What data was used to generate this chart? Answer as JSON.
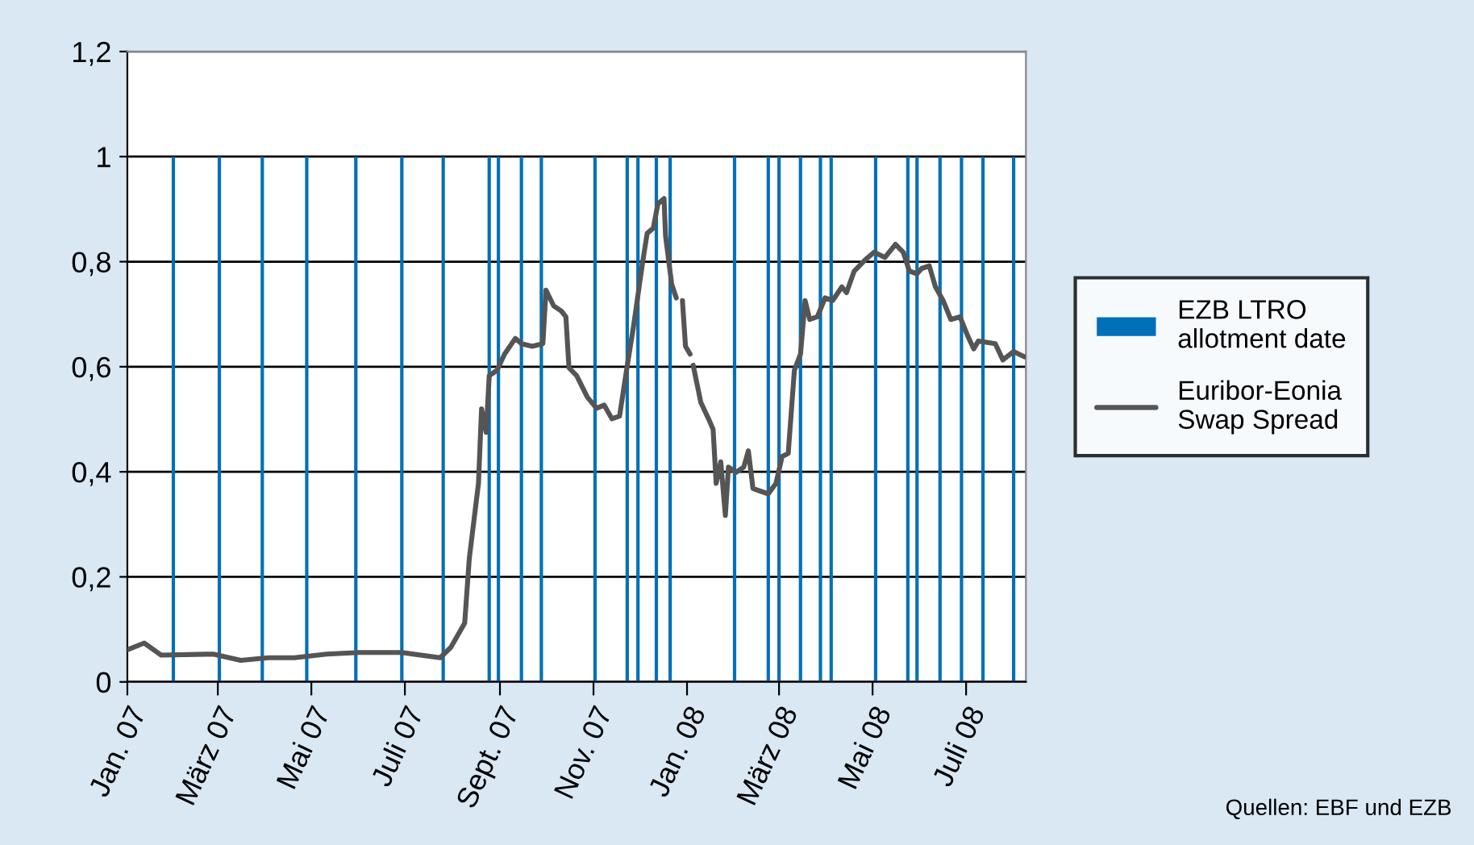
{
  "chart_data": {
    "type": "line",
    "series": [
      {
        "name": "EZB LTRO allotment date",
        "type": "bar",
        "color": "#0070b8",
        "x": [
          "2007-01-31",
          "2007-03-02",
          "2007-03-30",
          "2007-04-28",
          "2007-05-30",
          "2007-06-29",
          "2007-07-26",
          "2007-08-25",
          "2007-08-31",
          "2007-09-15",
          "2007-09-28",
          "2007-11-02",
          "2007-11-23",
          "2007-11-30",
          "2007-12-12",
          "2007-12-21",
          "2008-02-01",
          "2008-02-23",
          "2008-03-01",
          "2008-03-15",
          "2008-03-28",
          "2008-04-04",
          "2008-05-03",
          "2008-05-24",
          "2008-05-30",
          "2008-06-14",
          "2008-06-28",
          "2008-07-12",
          "2008-08-01"
        ],
        "values": [
          1,
          1,
          1,
          1,
          1,
          1,
          1,
          1,
          1,
          1,
          1,
          1,
          1,
          1,
          1,
          1,
          1,
          1,
          1,
          1,
          1,
          1,
          1,
          1,
          1,
          1,
          1,
          1,
          1
        ]
      },
      {
        "name": "Euribor-Eonia Swap Spread",
        "color": "#555555",
        "x": [
          "2007-01-01",
          "2007-01-12",
          "2007-01-23",
          "2007-02-26",
          "2007-03-16",
          "2007-04-03",
          "2007-04-20",
          "2007-05-11",
          "2007-06-01",
          "2007-06-29",
          "2007-07-24",
          "2007-07-31",
          "2007-08-09",
          "2007-08-12",
          "2007-08-18",
          "2007-08-20",
          "2007-08-23",
          "2007-08-25",
          "2007-08-30",
          "2007-09-04",
          "2007-09-11",
          "2007-09-15",
          "2007-09-22",
          "2007-09-29",
          "2007-10-01",
          "2007-10-06",
          "2007-10-11",
          "2007-10-14",
          "2007-10-16",
          "2007-10-21",
          "2007-10-28",
          "2007-11-03",
          "2007-11-08",
          "2007-11-13",
          "2007-11-18",
          "2007-11-22",
          "2007-11-27",
          "2007-12-03",
          "2007-12-06",
          "2007-12-10",
          "2007-12-13",
          "2007-12-17",
          "2007-12-18",
          "2007-12-22",
          "2007-12-25",
          "2007-12-27",
          "2007-12-29",
          "2007-12-31",
          "2008-01-03",
          "2008-01-04",
          "2008-01-05",
          "2008-01-10",
          "2008-01-15",
          "2008-01-18",
          "2008-01-20",
          "2008-01-23",
          "2008-01-26",
          "2008-01-28",
          "2008-02-02",
          "2008-02-07",
          "2008-02-10",
          "2008-02-13",
          "2008-02-18",
          "2008-02-23",
          "2008-02-28",
          "2008-03-03",
          "2008-03-07",
          "2008-03-11",
          "2008-03-15",
          "2008-03-18",
          "2008-03-21",
          "2008-03-26",
          "2008-03-31",
          "2008-04-05",
          "2008-04-11",
          "2008-04-14",
          "2008-04-19",
          "2008-04-26",
          "2008-05-02",
          "2008-05-09",
          "2008-05-16",
          "2008-05-21",
          "2008-05-25",
          "2008-05-30",
          "2008-06-02",
          "2008-06-07",
          "2008-06-11",
          "2008-06-16",
          "2008-06-21",
          "2008-06-27",
          "2008-07-02",
          "2008-07-06",
          "2008-07-09",
          "2008-07-20",
          "2008-07-25",
          "2008-08-01",
          "2008-08-08"
        ],
        "values": [
          0.061,
          0.074,
          0.051,
          0.053,
          0.041,
          0.046,
          0.046,
          0.053,
          0.056,
          0.056,
          0.046,
          0.066,
          0.112,
          0.235,
          0.378,
          0.52,
          0.475,
          0.583,
          0.593,
          0.624,
          0.654,
          0.644,
          0.639,
          0.644,
          0.746,
          0.716,
          0.706,
          0.695,
          0.598,
          0.583,
          0.542,
          0.521,
          0.527,
          0.501,
          0.506,
          0.583,
          0.675,
          0.798,
          0.854,
          0.864,
          0.91,
          0.92,
          0.849,
          0.757,
          0.731,
          null,
          0.726,
          0.639,
          0.624,
          null,
          0.603,
          0.532,
          0.501,
          0.481,
          0.378,
          0.419,
          0.317,
          0.409,
          0.399,
          0.409,
          0.44,
          0.368,
          0.363,
          0.358,
          0.378,
          0.429,
          0.435,
          0.593,
          0.624,
          0.726,
          0.69,
          0.695,
          0.731,
          0.726,
          0.752,
          0.741,
          0.782,
          0.803,
          0.818,
          0.808,
          0.833,
          0.818,
          0.782,
          0.777,
          0.787,
          0.792,
          0.752,
          0.726,
          0.69,
          0.695,
          0.659,
          0.634,
          0.649,
          0.644,
          0.613,
          0.629,
          0.619
        ]
      }
    ],
    "xlim": [
      "2007-01-01",
      "2008-08-09"
    ],
    "xticks": [
      {
        "value": "2007-01-01",
        "label": "Jan. 07"
      },
      {
        "value": "2007-03-01",
        "label": "März 07"
      },
      {
        "value": "2007-05-01",
        "label": "Mai 07"
      },
      {
        "value": "2007-07-01",
        "label": "Juli 07"
      },
      {
        "value": "2007-09-01",
        "label": "Sept. 07"
      },
      {
        "value": "2007-11-01",
        "label": "Nov. 07"
      },
      {
        "value": "2008-01-01",
        "label": "Jan. 08"
      },
      {
        "value": "2008-03-01",
        "label": "März 08"
      },
      {
        "value": "2008-05-01",
        "label": "Mai 08"
      },
      {
        "value": "2008-07-01",
        "label": "Juli 08"
      }
    ],
    "ylim": [
      0,
      1.2
    ],
    "yticks": [
      0,
      {
        "value": 0.2,
        "label": "0,2"
      },
      {
        "value": 0.4,
        "label": "0,4"
      },
      {
        "value": 0.6,
        "label": "0,6"
      },
      {
        "value": 0.8,
        "label": "0,8"
      },
      1,
      {
        "value": 1.2,
        "label": "1,2"
      }
    ],
    "grid": "y",
    "legend": "right",
    "annotations": [
      "Quellen: EBF und EZB"
    ]
  }
}
